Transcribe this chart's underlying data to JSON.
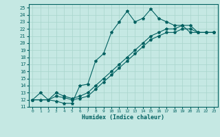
{
  "xlabel": "Humidex (Indice chaleur)",
  "bg_color": "#c5e8e3",
  "grid_color": "#a8d4cc",
  "line_color": "#006060",
  "xlim": [
    -0.5,
    23.5
  ],
  "ylim": [
    11,
    25.5
  ],
  "xticks": [
    0,
    1,
    2,
    3,
    4,
    5,
    6,
    7,
    8,
    9,
    10,
    11,
    12,
    13,
    14,
    15,
    16,
    17,
    18,
    19,
    20,
    21,
    22,
    23
  ],
  "yticks": [
    11,
    12,
    13,
    14,
    15,
    16,
    17,
    18,
    19,
    20,
    21,
    22,
    23,
    24,
    25
  ],
  "curve1_x": [
    0,
    1,
    2,
    3,
    4,
    5,
    6,
    7,
    8,
    9,
    10,
    11,
    12,
    13,
    14,
    15,
    16,
    17,
    18,
    19,
    20,
    21,
    22,
    23
  ],
  "curve1_y": [
    12.0,
    13.0,
    12.0,
    11.8,
    11.5,
    11.5,
    14.0,
    14.2,
    17.5,
    18.5,
    21.5,
    23.0,
    24.5,
    23.0,
    23.5,
    24.8,
    23.5,
    23.0,
    22.5,
    22.5,
    21.5,
    21.5,
    21.5,
    21.5
  ],
  "curve2_x": [
    0,
    1,
    2,
    3,
    4,
    5,
    6,
    7,
    8,
    9,
    10,
    11,
    12,
    13,
    14,
    15,
    16,
    17,
    18,
    19,
    20,
    21,
    22,
    23
  ],
  "curve2_y": [
    12.0,
    12.0,
    12.0,
    13.0,
    12.5,
    12.2,
    12.5,
    13.0,
    14.0,
    15.0,
    16.0,
    17.0,
    18.0,
    19.0,
    20.0,
    21.0,
    21.5,
    22.0,
    22.0,
    22.5,
    22.5,
    21.5,
    21.5,
    21.5
  ],
  "curve3_x": [
    0,
    1,
    2,
    3,
    4,
    5,
    6,
    7,
    8,
    9,
    10,
    11,
    12,
    13,
    14,
    15,
    16,
    17,
    18,
    19,
    20,
    21,
    22,
    23
  ],
  "curve3_y": [
    12.0,
    12.0,
    12.0,
    12.5,
    12.3,
    12.0,
    12.2,
    12.5,
    13.5,
    14.5,
    15.5,
    16.5,
    17.5,
    18.5,
    19.5,
    20.5,
    21.0,
    21.5,
    21.5,
    22.0,
    22.0,
    21.5,
    21.5,
    21.5
  ]
}
